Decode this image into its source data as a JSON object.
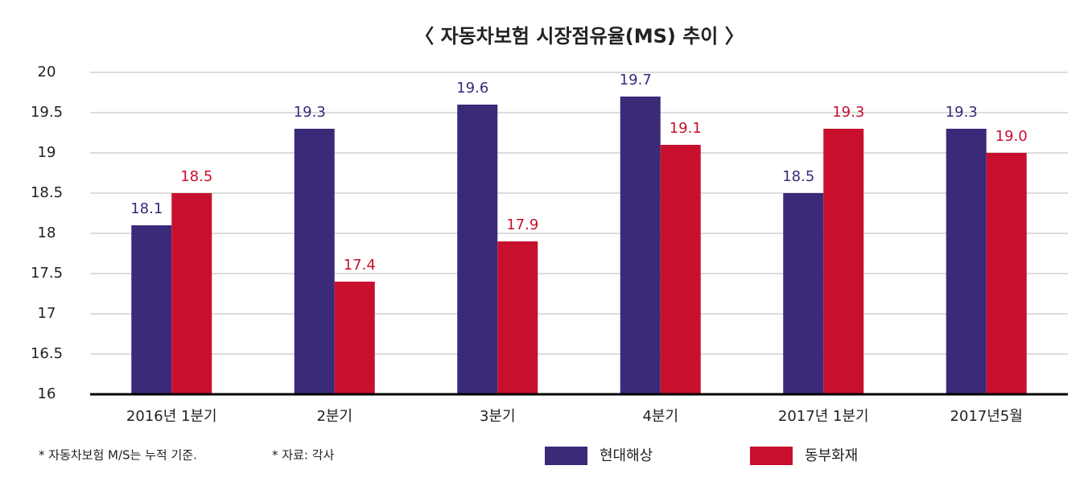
{
  "chart_data": {
    "type": "bar",
    "title": "〈 자동차보험 시장점유율(MS) 추이 〉",
    "categories": [
      "2016년 1분기",
      "2분기",
      "3분기",
      "4분기",
      "2017년 1분기",
      "2017년5월"
    ],
    "series": [
      {
        "name": "현대해상",
        "color": "#3a2a78",
        "values": [
          18.1,
          19.3,
          19.6,
          19.7,
          18.5,
          19.3
        ],
        "value_labels": [
          "18.1",
          "19.3",
          "19.6",
          "19.7",
          "18.5",
          "19.3"
        ]
      },
      {
        "name": "동부화재",
        "color": "#c8102e",
        "values": [
          18.5,
          17.4,
          17.9,
          19.1,
          19.3,
          19.0
        ],
        "value_labels": [
          "18.5",
          "17.4",
          "17.9",
          "19.1",
          "19.3",
          "19.0"
        ]
      }
    ],
    "ylim": [
      16,
      20
    ],
    "yticks": [
      16,
      16.5,
      17,
      17.5,
      18,
      18.5,
      19,
      19.5,
      20
    ],
    "grid": true,
    "notes": [
      "* 자동차보험 M/S는 누적 기준.",
      "* 자료: 각사"
    ]
  }
}
